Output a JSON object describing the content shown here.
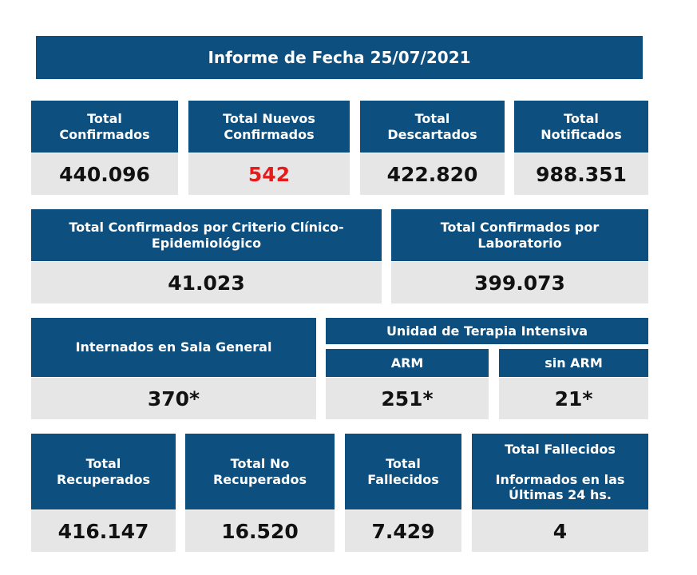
{
  "title": "Informe de Fecha 25/07/2021",
  "row1": [
    {
      "label": "Total\nConfirmados",
      "value": "440.096"
    },
    {
      "label": "Total Nuevos\nConfirmados",
      "value": "542",
      "highlight": "#e41c1c"
    },
    {
      "label": "Total\nDescartados",
      "value": "422.820"
    },
    {
      "label": "Total\nNotificados",
      "value": "988.351"
    }
  ],
  "row2": [
    {
      "label": "Total Confirmados por Criterio Clínico-\nEpidemiológico",
      "value": "41.023"
    },
    {
      "label": "Total Confirmados por\nLaboratorio",
      "value": "399.073"
    }
  ],
  "row3": {
    "sala_general": {
      "label": "Internados en Sala General",
      "value": "370*"
    },
    "uti_title": "Unidad de Terapia Intensiva",
    "arm": {
      "label": "ARM",
      "value": "251*"
    },
    "sin_arm": {
      "label": "sin ARM",
      "value": "21*"
    }
  },
  "row4": [
    {
      "label": "Total\nRecuperados",
      "value": "416.147"
    },
    {
      "label": "Total No\nRecuperados",
      "value": "16.520"
    },
    {
      "label": "Total\nFallecidos",
      "value": "7.429"
    },
    {
      "label": "Total Fallecidos\n\nInformados en las\nÚltimas 24 hs.",
      "value": "4"
    }
  ],
  "colors": {
    "header_bg": "#0d4f7f",
    "value_bg": "#e6e6e6",
    "highlight": "#e41c1c"
  }
}
